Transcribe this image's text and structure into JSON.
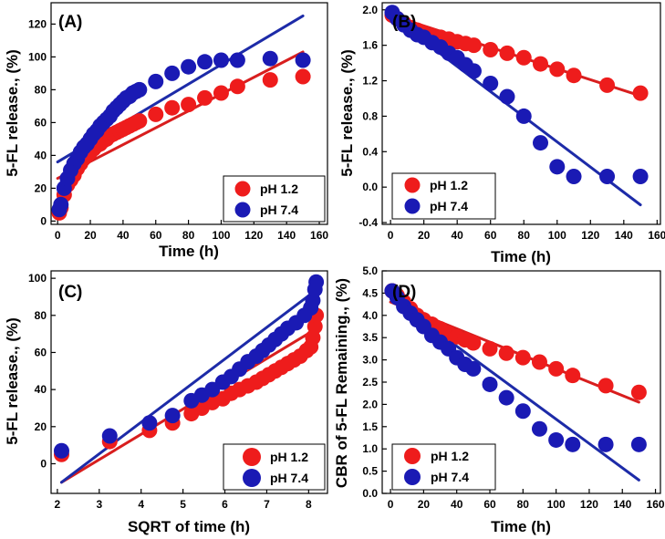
{
  "colors": {
    "red": "#ee1c1c",
    "blue": "#1a1ab4",
    "red_line": "#d81e1e",
    "blue_line": "#1d2ba8"
  },
  "chart_data": [
    {
      "panel": "(A)",
      "type": "scatter",
      "xlabel": "Time (h)",
      "ylabel": "5-FL release., (%)",
      "xlim": [
        -4,
        165
      ],
      "ylim": [
        -2,
        133
      ],
      "xticks": [
        0,
        20,
        40,
        60,
        80,
        100,
        120,
        140,
        160
      ],
      "yticks": [
        0,
        20,
        40,
        60,
        80,
        100,
        120
      ],
      "legend": {
        "position": "bottom-right",
        "labels": [
          "pH 1.2",
          "pH 7.4"
        ]
      },
      "series": [
        {
          "name": "pH 1.2",
          "color": "red",
          "x": [
            1,
            2,
            4,
            6,
            8,
            10,
            12,
            14,
            16,
            18,
            20,
            22,
            24,
            26,
            28,
            30,
            32,
            34,
            36,
            38,
            40,
            42,
            44,
            46,
            48,
            50,
            60,
            70,
            80,
            90,
            100,
            110,
            130,
            150
          ],
          "y": [
            5,
            8,
            16,
            22,
            25,
            28,
            32,
            35,
            38,
            40,
            42,
            44,
            46,
            47,
            49,
            50,
            52,
            53,
            54,
            55,
            56,
            57,
            58,
            59,
            60,
            61,
            65,
            69,
            71,
            75,
            78,
            82,
            86,
            88
          ],
          "fit": {
            "x": [
              0,
              150
            ],
            "y": [
              26,
              103
            ]
          }
        },
        {
          "name": "pH 7.4",
          "color": "blue",
          "x": [
            1,
            2,
            4,
            6,
            8,
            10,
            12,
            14,
            16,
            18,
            20,
            22,
            24,
            26,
            28,
            30,
            32,
            34,
            36,
            38,
            40,
            42,
            44,
            46,
            48,
            50,
            60,
            70,
            80,
            90,
            100,
            110,
            130,
            150
          ],
          "y": [
            7,
            10,
            20,
            26,
            31,
            35,
            38,
            42,
            45,
            47,
            50,
            53,
            55,
            58,
            60,
            62,
            64,
            67,
            69,
            71,
            73,
            75,
            76,
            78,
            79,
            80,
            85,
            90,
            94,
            97,
            98,
            98,
            99,
            98
          ],
          "fit": {
            "x": [
              0,
              150
            ],
            "y": [
              36,
              125
            ]
          }
        }
      ]
    },
    {
      "panel": "(B)",
      "type": "scatter",
      "xlabel": "Time (h)",
      "ylabel": "5-FL release., (%)",
      "xlim": [
        -5,
        162
      ],
      "ylim": [
        -0.42,
        2.08
      ],
      "xticks": [
        0,
        20,
        40,
        60,
        80,
        100,
        120,
        140,
        160
      ],
      "yticks": [
        -0.4,
        0.0,
        0.4,
        0.8,
        1.2,
        1.6,
        2.0
      ],
      "ytick_labels": [
        "-0.4",
        "0.0",
        "0.4",
        "0.8",
        "1.2",
        "1.6",
        "2.0"
      ],
      "legend": {
        "position": "bottom-left",
        "labels": [
          "pH 1.2",
          "pH 7.4"
        ]
      },
      "series": [
        {
          "name": "pH 1.2",
          "color": "red",
          "x": [
            1,
            4,
            8,
            12,
            16,
            20,
            25,
            30,
            35,
            40,
            45,
            50,
            60,
            70,
            80,
            90,
            100,
            110,
            130,
            150
          ],
          "y": [
            1.94,
            1.9,
            1.85,
            1.8,
            1.77,
            1.74,
            1.71,
            1.69,
            1.67,
            1.64,
            1.62,
            1.6,
            1.55,
            1.51,
            1.46,
            1.39,
            1.33,
            1.26,
            1.15,
            1.06
          ],
          "fit": {
            "x": [
              0,
              150
            ],
            "y": [
              1.94,
              1.03
            ]
          }
        },
        {
          "name": "pH 7.4",
          "color": "blue",
          "x": [
            1,
            4,
            8,
            12,
            16,
            20,
            25,
            30,
            35,
            40,
            45,
            50,
            60,
            70,
            80,
            90,
            100,
            110,
            130,
            150
          ],
          "y": [
            1.97,
            1.9,
            1.83,
            1.77,
            1.72,
            1.69,
            1.63,
            1.58,
            1.51,
            1.46,
            1.38,
            1.31,
            1.17,
            1.02,
            0.8,
            0.5,
            0.23,
            0.12,
            0.12,
            0.12
          ],
          "fit": {
            "x": [
              0,
              150
            ],
            "y": [
              1.93,
              -0.2
            ]
          }
        }
      ]
    },
    {
      "panel": "(C)",
      "type": "scatter",
      "xlabel": "SQRT of time (h)",
      "ylabel": "5-FL release., (%)",
      "xlim": [
        1.85,
        8.45
      ],
      "ylim": [
        -16,
        104
      ],
      "xticks": [
        2,
        3,
        4,
        5,
        6,
        7,
        8
      ],
      "yticks": [
        0,
        20,
        40,
        60,
        80,
        100
      ],
      "legend": {
        "position": "bottom-right",
        "labels": [
          "pH 1.2",
          "pH 7.4"
        ]
      },
      "series": [
        {
          "name": "pH 1.2",
          "color": "red",
          "x": [
            2.1,
            3.25,
            4.2,
            4.75,
            5.2,
            5.45,
            5.7,
            5.95,
            6.15,
            6.35,
            6.55,
            6.75,
            6.9,
            7.05,
            7.2,
            7.35,
            7.5,
            7.65,
            7.8,
            7.95,
            8.05,
            8.1,
            8.15,
            8.18
          ],
          "y": [
            5,
            12,
            18,
            22,
            27,
            30,
            33,
            35,
            38,
            40,
            42,
            44,
            46,
            48,
            50,
            52,
            54,
            56,
            58,
            61,
            63,
            68,
            74,
            80
          ],
          "fit": {
            "x": [
              2.1,
              8.2
            ],
            "y": [
              -10,
              73
            ]
          }
        },
        {
          "name": "pH 7.4",
          "color": "blue",
          "x": [
            2.1,
            3.25,
            4.2,
            4.75,
            5.2,
            5.45,
            5.7,
            5.95,
            6.15,
            6.35,
            6.55,
            6.75,
            6.9,
            7.05,
            7.2,
            7.35,
            7.5,
            7.7,
            7.9,
            8.05,
            8.1,
            8.15,
            8.18
          ],
          "y": [
            7,
            15,
            22,
            26,
            34,
            37,
            40,
            44,
            47,
            51,
            55,
            58,
            61,
            64,
            67,
            70,
            73,
            76,
            80,
            84,
            88,
            94,
            98
          ],
          "fit": {
            "x": [
              2.1,
              8.2
            ],
            "y": [
              -10,
              94
            ]
          }
        }
      ]
    },
    {
      "panel": "(D)",
      "type": "scatter",
      "xlabel": "Time (h)",
      "ylabel": "CBR of 5-FL Remaining., (%)",
      "xlim": [
        -5,
        163
      ],
      "ylim": [
        0,
        5
      ],
      "xticks": [
        0,
        20,
        40,
        60,
        80,
        100,
        120,
        140,
        160
      ],
      "yticks": [
        0.0,
        0.5,
        1.0,
        1.5,
        2.0,
        2.5,
        3.0,
        3.5,
        4.0,
        4.5,
        5.0
      ],
      "ytick_labels": [
        "0.0",
        "0.5",
        "1.0",
        "1.5",
        "2.0",
        "2.5",
        "3.0",
        "3.5",
        "4.0",
        "4.5",
        "5.0"
      ],
      "legend": {
        "position": "bottom-left",
        "labels": [
          "pH 1.2",
          "pH 7.4"
        ]
      },
      "series": [
        {
          "name": "pH 1.2",
          "color": "red",
          "x": [
            1,
            4,
            8,
            12,
            16,
            20,
            25,
            30,
            35,
            40,
            45,
            50,
            60,
            70,
            80,
            90,
            100,
            110,
            130,
            150
          ],
          "y": [
            4.55,
            4.45,
            4.3,
            4.15,
            4.0,
            3.9,
            3.8,
            3.7,
            3.6,
            3.52,
            3.45,
            3.38,
            3.25,
            3.15,
            3.05,
            2.95,
            2.8,
            2.65,
            2.42,
            2.27
          ],
          "fit": {
            "x": [
              0,
              150
            ],
            "y": [
              4.3,
              2.05
            ]
          }
        },
        {
          "name": "pH 7.4",
          "color": "blue",
          "x": [
            1,
            4,
            8,
            12,
            16,
            20,
            25,
            30,
            35,
            40,
            45,
            50,
            60,
            70,
            80,
            90,
            100,
            110,
            130,
            150
          ],
          "y": [
            4.55,
            4.4,
            4.2,
            4.05,
            3.9,
            3.75,
            3.55,
            3.4,
            3.25,
            3.05,
            2.9,
            2.8,
            2.45,
            2.15,
            1.85,
            1.45,
            1.2,
            1.1,
            1.1,
            1.1
          ],
          "fit": {
            "x": [
              0,
              150
            ],
            "y": [
              4.4,
              0.3
            ]
          }
        }
      ]
    }
  ]
}
